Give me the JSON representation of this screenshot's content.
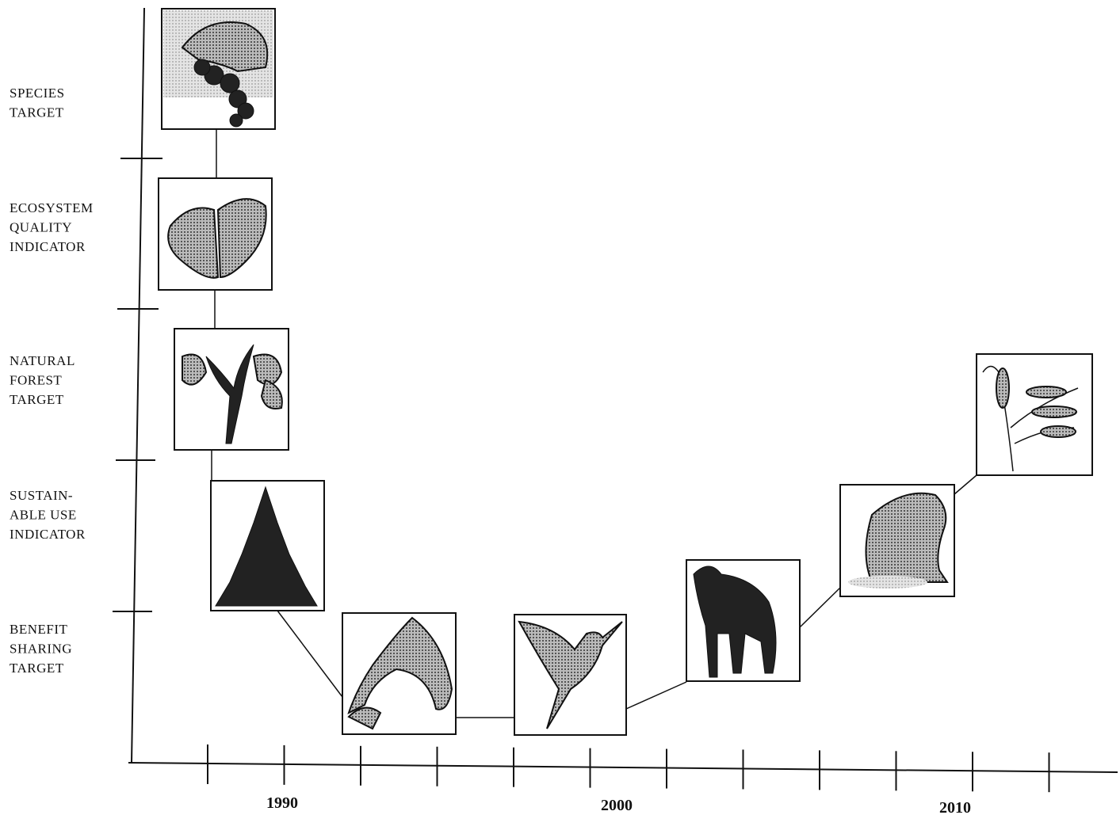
{
  "rows": [
    [
      "SPECIES",
      "TARGET"
    ],
    [
      "ECOSYSTEM",
      "QUALITY",
      "INDICATOR"
    ],
    [
      "NATURAL",
      "FOREST",
      "TARGET"
    ],
    [
      "SUSTAIN-",
      "ABLE USE",
      "INDICATOR"
    ],
    [
      "BENEFIT",
      "SHARING",
      "TARGET"
    ]
  ],
  "years": [
    "1990",
    "2000",
    "2010"
  ]
}
